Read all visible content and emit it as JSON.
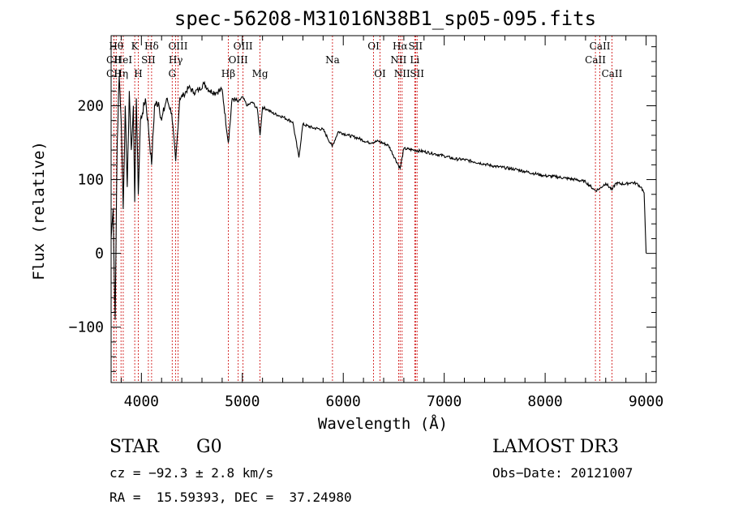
{
  "chart_data": {
    "type": "line",
    "title": "spec-56208-M31016N38B1_sp05-095.fits",
    "xlabel": "Wavelength (Å)",
    "ylabel": "Flux (relative)",
    "xlim": [
      3700,
      9100
    ],
    "ylim": [
      -175,
      295
    ],
    "x_ticks": [
      4000,
      5000,
      6000,
      7000,
      8000,
      9000
    ],
    "x_tick_labels": [
      "4000",
      "5000",
      "6000",
      "7000",
      "8000",
      "9000"
    ],
    "y_ticks": [
      -100,
      0,
      100,
      200
    ],
    "y_tick_labels": [
      "−100",
      "0",
      "100",
      "200"
    ],
    "grid": false,
    "series": [
      {
        "name": "flux",
        "x": [
          3700,
          3720,
          3740,
          3760,
          3780,
          3800,
          3820,
          3840,
          3860,
          3880,
          3900,
          3920,
          3934,
          3950,
          3969,
          3990,
          4010,
          4040,
          4070,
          4101,
          4130,
          4170,
          4200,
          4250,
          4300,
          4340,
          4380,
          4420,
          4470,
          4520,
          4570,
          4620,
          4680,
          4740,
          4800,
          4861,
          4900,
          4960,
          5000,
          5050,
          5100,
          5150,
          5175,
          5200,
          5250,
          5300,
          5400,
          5500,
          5560,
          5600,
          5700,
          5800,
          5890,
          5950,
          6050,
          6150,
          6250,
          6350,
          6450,
          6563,
          6600,
          6700,
          6800,
          6900,
          7000,
          7100,
          7200,
          7300,
          7400,
          7500,
          7600,
          7700,
          7800,
          7900,
          8000,
          8100,
          8200,
          8300,
          8400,
          8498,
          8542,
          8600,
          8662,
          8700,
          8800,
          8850,
          8900,
          8950,
          8980,
          9000
        ],
        "y": [
          20,
          60,
          -90,
          150,
          240,
          180,
          60,
          200,
          90,
          220,
          140,
          200,
          70,
          210,
          80,
          180,
          190,
          210,
          170,
          120,
          200,
          205,
          180,
          210,
          190,
          125,
          210,
          215,
          225,
          218,
          222,
          230,
          220,
          218,
          222,
          150,
          210,
          205,
          212,
          200,
          205,
          195,
          160,
          198,
          195,
          190,
          185,
          178,
          130,
          175,
          170,
          168,
          145,
          165,
          160,
          156,
          150,
          152,
          146,
          115,
          142,
          140,
          138,
          135,
          132,
          128,
          127,
          124,
          121,
          118,
          116,
          114,
          111,
          108,
          105,
          104,
          102,
          100,
          97,
          85,
          88,
          95,
          86,
          95,
          94,
          96,
          95,
          90,
          82,
          0
        ]
      }
    ],
    "spectral_lines": [
      {
        "name": "CII",
        "wavelength": 3727,
        "row": 3
      },
      {
        "name": "Hη",
        "wavelength": 3798,
        "row": 3
      },
      {
        "name": "H",
        "wavelength": 3969,
        "row": 3
      },
      {
        "name": "CII",
        "wavelength": 3727,
        "row": 2
      },
      {
        "name": "HeI",
        "wavelength": 3820,
        "row": 2
      },
      {
        "name": "SII",
        "wavelength": 4069,
        "row": 2
      },
      {
        "name": "Hθ",
        "wavelength": 3750,
        "row": 1
      },
      {
        "name": "K",
        "wavelength": 3934,
        "row": 1
      },
      {
        "name": "Hδ",
        "wavelength": 4101,
        "row": 1
      },
      {
        "name": "OIII",
        "wavelength": 4363,
        "row": 1
      },
      {
        "name": "Hγ",
        "wavelength": 4340,
        "row": 2
      },
      {
        "name": "G",
        "wavelength": 4305,
        "row": 3
      },
      {
        "name": "OIII",
        "wavelength": 5007,
        "row": 1
      },
      {
        "name": "OIII",
        "wavelength": 4959,
        "row": 2
      },
      {
        "name": "Hβ",
        "wavelength": 4861,
        "row": 3
      },
      {
        "name": "Mg",
        "wavelength": 5175,
        "row": 3
      },
      {
        "name": "Na",
        "wavelength": 5893,
        "row": 2
      },
      {
        "name": "OI",
        "wavelength": 6300,
        "row": 1
      },
      {
        "name": "OI",
        "wavelength": 6364,
        "row": 3
      },
      {
        "name": "Hα",
        "wavelength": 6563,
        "row": 1
      },
      {
        "name": "SII",
        "wavelength": 6716,
        "row": 1
      },
      {
        "name": "NII",
        "wavelength": 6548,
        "row": 2
      },
      {
        "name": "Li",
        "wavelength": 6708,
        "row": 2
      },
      {
        "name": "NII",
        "wavelength": 6583,
        "row": 3
      },
      {
        "name": "SII",
        "wavelength": 6731,
        "row": 3
      },
      {
        "name": "CaII",
        "wavelength": 8542,
        "row": 1
      },
      {
        "name": "CaII",
        "wavelength": 8498,
        "row": 2
      },
      {
        "name": "CaII",
        "wavelength": 8662,
        "row": 3
      }
    ],
    "line_color": "#000000",
    "marker_color": "#cc0000"
  },
  "info": {
    "object_class": "STAR",
    "subclass": "G0",
    "survey": "LAMOST DR3",
    "redshift": "cz = −92.3 ± 2.8 km/s",
    "obs_date": "Obs−Date: 20121007",
    "coords": "RA =  15.59393, DEC =  37.24980"
  }
}
